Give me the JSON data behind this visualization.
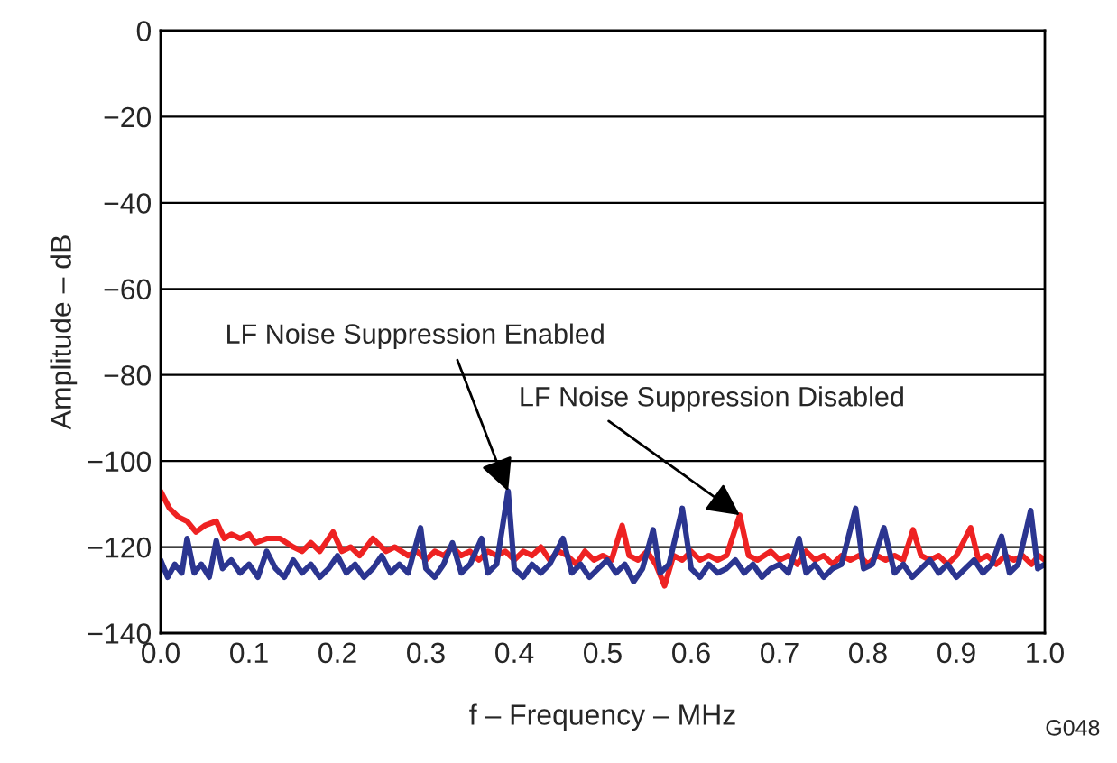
{
  "chart_data": {
    "type": "line",
    "xlabel": "f – Frequency – MHz",
    "ylabel": "Amplitude – dB",
    "xlim": [
      0,
      1
    ],
    "ylim": [
      -140,
      0
    ],
    "xticks": [
      {
        "value": 0,
        "label": "0.0"
      },
      0.1,
      0.2,
      0.3,
      0.4,
      0.5,
      0.6,
      0.7,
      0.8,
      0.9,
      {
        "value": 1,
        "label": "1.0"
      }
    ],
    "yticks": [
      {
        "value": -140,
        "label": "−140"
      },
      {
        "value": -120,
        "label": "−120"
      },
      {
        "value": -100,
        "label": "−100"
      },
      {
        "value": -80,
        "label": "−80"
      },
      {
        "value": -60,
        "label": "−60"
      },
      {
        "value": -40,
        "label": "−40"
      },
      {
        "value": -20,
        "label": "−20"
      },
      0
    ],
    "grid": "y",
    "marker": "none",
    "line_style": "solid",
    "series": [
      {
        "color": "#ee2222",
        "x": [
          0.0,
          0.01,
          0.02,
          0.03,
          0.04,
          0.05,
          0.063,
          0.072,
          0.08,
          0.09,
          0.1,
          0.107,
          0.12,
          0.135,
          0.15,
          0.16,
          0.17,
          0.18,
          0.195,
          0.205,
          0.215,
          0.225,
          0.24,
          0.255,
          0.265,
          0.28,
          0.29,
          0.3,
          0.31,
          0.32,
          0.33,
          0.34,
          0.35,
          0.36,
          0.37,
          0.38,
          0.39,
          0.4,
          0.41,
          0.42,
          0.43,
          0.44,
          0.45,
          0.46,
          0.47,
          0.48,
          0.49,
          0.5,
          0.51,
          0.522,
          0.53,
          0.54,
          0.55,
          0.56,
          0.57,
          0.58,
          0.59,
          0.6,
          0.61,
          0.62,
          0.63,
          0.64,
          0.655,
          0.665,
          0.675,
          0.69,
          0.7,
          0.71,
          0.72,
          0.73,
          0.74,
          0.75,
          0.76,
          0.77,
          0.78,
          0.79,
          0.8,
          0.81,
          0.82,
          0.83,
          0.84,
          0.851,
          0.86,
          0.87,
          0.88,
          0.89,
          0.9,
          0.916,
          0.925,
          0.935,
          0.945,
          0.955,
          0.965,
          0.975,
          0.985,
          0.993,
          1.0
        ],
        "values": [
          -107,
          -111,
          -113,
          -114,
          -116.5,
          -115,
          -114,
          -118,
          -117,
          -118,
          -117,
          -119,
          -118,
          -118,
          -120,
          -121,
          -119,
          -121,
          -116.5,
          -121,
          -120,
          -122,
          -118,
          -121,
          -120,
          -122,
          -121,
          -123,
          -121,
          -122,
          -120,
          -122,
          -121,
          -123,
          -121,
          -122,
          -121,
          -123,
          -121,
          -122,
          -120,
          -123,
          -121,
          -122,
          -124,
          -121,
          -123,
          -122,
          -123,
          -115,
          -122,
          -123,
          -121,
          -124,
          -129,
          -122,
          -123,
          -121,
          -123,
          -122,
          -123,
          -122,
          -112.6,
          -122,
          -123,
          -121,
          -123,
          -122,
          -124,
          -121,
          -123,
          -122,
          -124,
          -122,
          -123,
          -122,
          -124,
          -122,
          -123,
          -122,
          -123,
          -116,
          -122,
          -123,
          -122,
          -124,
          -122,
          -115.5,
          -123,
          -122,
          -124,
          -122,
          -123,
          -122,
          -124,
          -122,
          -123
        ]
      },
      {
        "color": "#2b3590",
        "x": [
          0.0,
          0.008,
          0.016,
          0.024,
          0.03,
          0.038,
          0.046,
          0.055,
          0.063,
          0.07,
          0.08,
          0.09,
          0.1,
          0.11,
          0.12,
          0.13,
          0.14,
          0.15,
          0.16,
          0.17,
          0.18,
          0.19,
          0.2,
          0.21,
          0.22,
          0.23,
          0.24,
          0.25,
          0.26,
          0.27,
          0.28,
          0.294,
          0.3,
          0.31,
          0.32,
          0.33,
          0.34,
          0.35,
          0.363,
          0.37,
          0.38,
          0.393,
          0.4,
          0.41,
          0.42,
          0.43,
          0.44,
          0.455,
          0.465,
          0.475,
          0.485,
          0.495,
          0.505,
          0.515,
          0.525,
          0.535,
          0.545,
          0.557,
          0.565,
          0.575,
          0.59,
          0.6,
          0.61,
          0.62,
          0.63,
          0.64,
          0.65,
          0.66,
          0.67,
          0.68,
          0.69,
          0.7,
          0.71,
          0.722,
          0.73,
          0.74,
          0.75,
          0.76,
          0.77,
          0.786,
          0.795,
          0.805,
          0.818,
          0.83,
          0.84,
          0.85,
          0.86,
          0.87,
          0.88,
          0.89,
          0.9,
          0.91,
          0.92,
          0.93,
          0.94,
          0.951,
          0.96,
          0.97,
          0.984,
          0.992,
          1.0
        ],
        "values": [
          -123,
          -127,
          -124,
          -126,
          -118,
          -126,
          -124,
          -127,
          -118.5,
          -125,
          -123,
          -126,
          -124,
          -127,
          -121,
          -125,
          -127,
          -123,
          -126,
          -124,
          -127,
          -125,
          -122,
          -126,
          -124,
          -127,
          -125,
          -122,
          -126,
          -124,
          -126,
          -115.5,
          -125,
          -127,
          -124,
          -119,
          -126,
          -124,
          -118,
          -126,
          -124,
          -107,
          -125,
          -127,
          -124,
          -126,
          -124,
          -118,
          -126,
          -124,
          -127,
          -125,
          -123,
          -126,
          -124,
          -128,
          -125,
          -116,
          -126,
          -124,
          -111,
          -125,
          -127,
          -124,
          -126,
          -125,
          -123,
          -126,
          -124,
          -127,
          -125,
          -124,
          -126,
          -118,
          -126,
          -124,
          -127,
          -125,
          -124,
          -111,
          -125,
          -124,
          -115.5,
          -126,
          -124,
          -127,
          -125,
          -123,
          -126,
          -124,
          -127,
          -125,
          -123,
          -126,
          -124,
          -117.5,
          -126,
          -124,
          -111.5,
          -125,
          -124
        ]
      }
    ],
    "annotations": [
      {
        "text": "LF Noise Suppression Enabled",
        "x": 0.393,
        "y": -107
      },
      {
        "text": "LF Noise Suppression Disabled",
        "x": 0.655,
        "y": -112.6
      },
      "G048"
    ]
  }
}
